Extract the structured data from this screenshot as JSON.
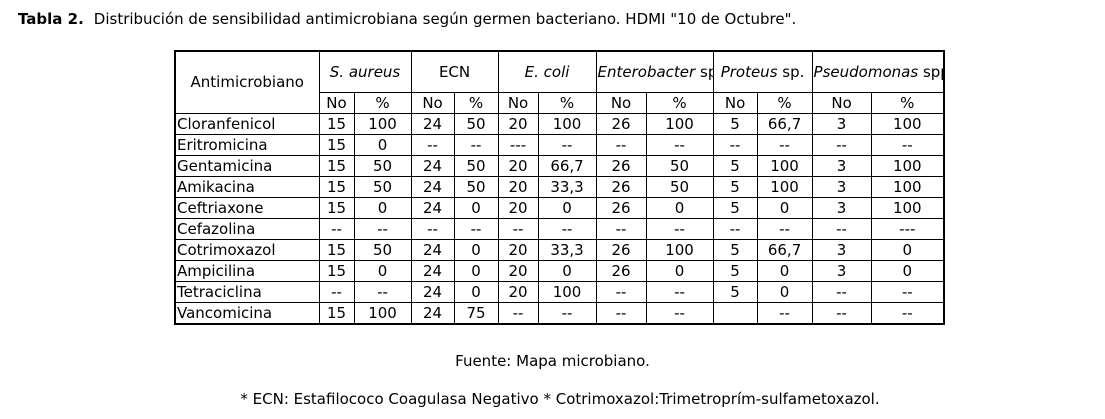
{
  "title": {
    "label": "Tabla 2.",
    "text": "Distribución de sensibilidad antimicrobiana según germen bacteriano. HDMI \"10 de Octubre\"."
  },
  "table": {
    "corner": "Antimicrobiano",
    "organisms": [
      {
        "name": "S. aureus"
      },
      {
        "name": "ECN",
        "plain": true
      },
      {
        "name": "E. coli"
      },
      {
        "name": "Enterobacter",
        "suffix": "sp."
      },
      {
        "name": "Proteus",
        "suffix": "sp."
      },
      {
        "name": "Pseudomonas",
        "suffix": "spp."
      }
    ],
    "subheader": [
      "No",
      "%"
    ],
    "rows": [
      [
        "Cloranfenicol",
        "15",
        "100",
        "24",
        "50",
        "20",
        "100",
        "26",
        "100",
        "5",
        "66,7",
        "3",
        "100"
      ],
      [
        "Eritromicina",
        "15",
        "0",
        "--",
        "--",
        "---",
        "--",
        "--",
        "--",
        "--",
        "--",
        "--",
        "--"
      ],
      [
        "Gentamicina",
        "15",
        "50",
        "24",
        "50",
        "20",
        "66,7",
        "26",
        "50",
        "5",
        "100",
        "3",
        "100"
      ],
      [
        "Amikacina",
        "15",
        "50",
        "24",
        "50",
        "20",
        "33,3",
        "26",
        "50",
        "5",
        "100",
        "3",
        "100"
      ],
      [
        "Ceftriaxone",
        "15",
        "0",
        "24",
        "0",
        "20",
        "0",
        "26",
        "0",
        "5",
        "0",
        "3",
        "100"
      ],
      [
        "Cefazolina",
        "--",
        "--",
        "--",
        "--",
        "--",
        "--",
        "--",
        "--",
        "--",
        "--",
        "--",
        "---"
      ],
      [
        "Cotrimoxazol",
        "15",
        "50",
        "24",
        "0",
        "20",
        "33,3",
        "26",
        "100",
        "5",
        "66,7",
        "3",
        "0"
      ],
      [
        "Ampicilina",
        "15",
        "0",
        "24",
        "0",
        "20",
        "0",
        "26",
        "0",
        "5",
        "0",
        "3",
        "0"
      ],
      [
        "Tetraciclina",
        "--",
        "--",
        "24",
        "0",
        "20",
        "100",
        "--",
        "--",
        "5",
        "0",
        "--",
        "--"
      ],
      [
        "Vancomicina",
        "15",
        "100",
        "24",
        "75",
        "--",
        "--",
        "--",
        "--",
        null,
        "--",
        "--",
        "--"
      ]
    ]
  },
  "footer": {
    "source": "Fuente: Mapa microbiano.",
    "note": "* ECN: Estafilococo Coagulasa Negativo * Cotrimoxazol:Trimetroprím-sulfametoxazol."
  }
}
